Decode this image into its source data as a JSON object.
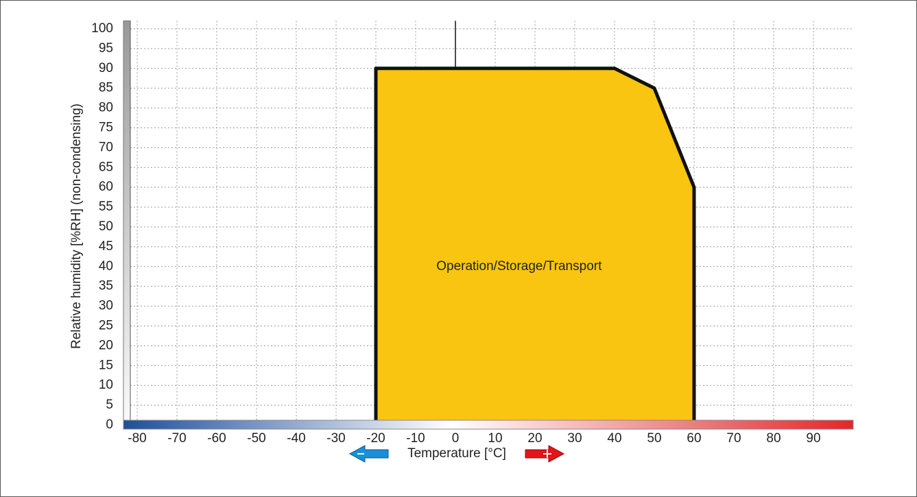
{
  "chart_data": {
    "type": "area",
    "title": "Operation/Storage/Transport",
    "xlabel": "Temperature [°C]",
    "ylabel": "Relative humidity [%RH] (non-condensing)",
    "series": [
      {
        "name": "Operation/Storage/Transport",
        "color": "#f9c510",
        "x": [
          -20,
          -20,
          40,
          50,
          60,
          60
        ],
        "values": [
          0,
          90,
          90,
          85,
          60,
          0
        ]
      }
    ],
    "xlim": [
      -83,
      100
    ],
    "ylim": [
      0,
      102
    ],
    "xticks": [
      -80,
      -70,
      -60,
      -50,
      -40,
      -30,
      -20,
      -10,
      0,
      10,
      20,
      30,
      40,
      50,
      60,
      70,
      80,
      90
    ],
    "yticks": [
      0,
      5,
      10,
      15,
      20,
      25,
      30,
      35,
      40,
      45,
      50,
      55,
      60,
      65,
      70,
      75,
      80,
      85,
      90,
      95,
      100
    ],
    "grid": true
  }
}
